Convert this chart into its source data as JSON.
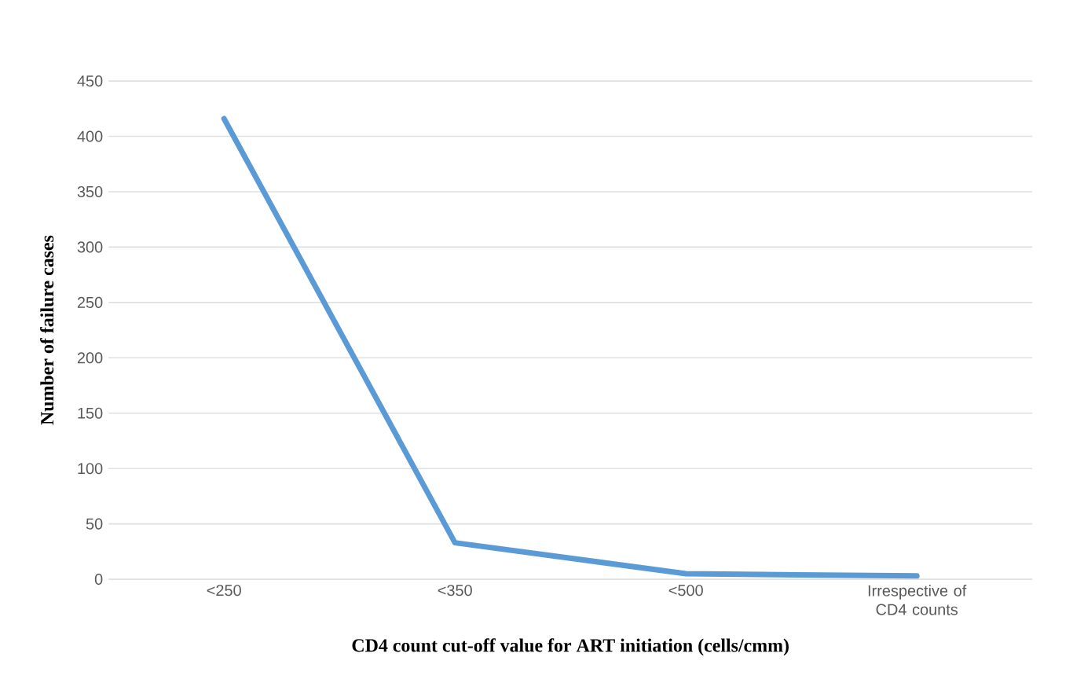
{
  "chart_data": {
    "type": "line",
    "xlabel": "CD4 count cut-off value for ART initiation (cells/cmm)",
    "ylabel": "Number of failure cases",
    "categories": [
      "<250",
      "<350",
      "<500",
      "Irrespective of CD4 counts"
    ],
    "series": [
      {
        "color": "#5b9bd5",
        "values": [
          416,
          33,
          5,
          3
        ]
      }
    ],
    "ylim": [
      0,
      450
    ],
    "yticks": [
      0,
      50,
      100,
      150,
      200,
      250,
      300,
      350,
      400,
      450
    ],
    "grid": "y",
    "marker": "none",
    "line_style": "solid"
  }
}
